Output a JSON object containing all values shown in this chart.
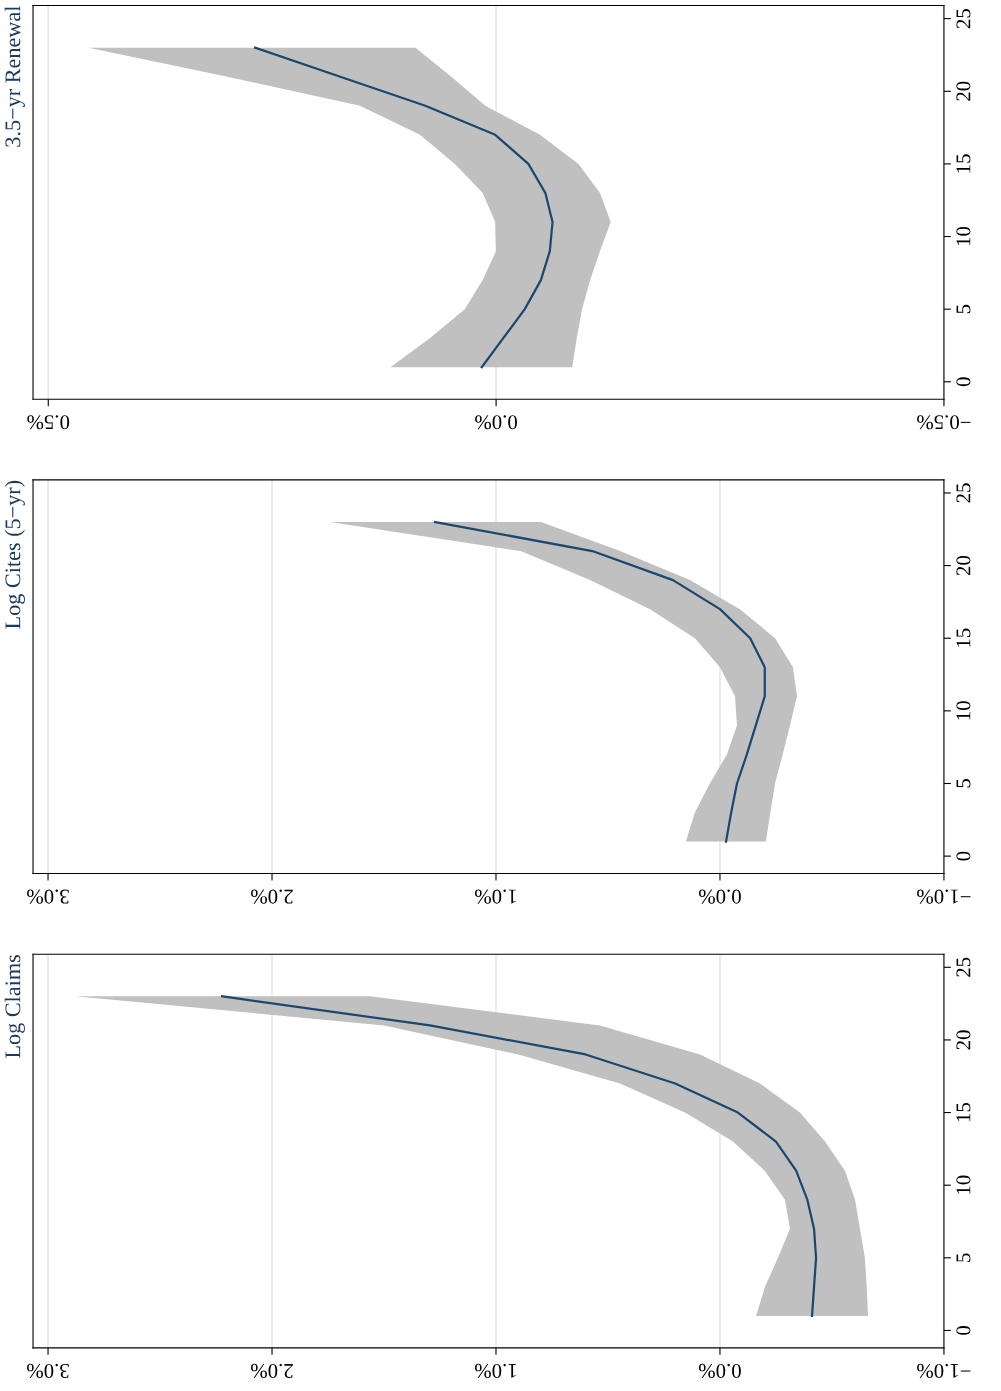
{
  "chart_data": [
    {
      "type": "line",
      "orientation": "horizontal",
      "title": "3.5−yr Renewal",
      "grid": "x",
      "x": [
        1,
        3,
        5,
        7,
        9,
        11,
        13,
        15,
        17,
        19,
        21,
        23
      ],
      "series": [
        {
          "color": "#1a476f",
          "values": [
            0.016,
            -0.008,
            -0.032,
            -0.05,
            -0.06,
            -0.063,
            -0.055,
            -0.036,
            0.001,
            0.079,
            0.174,
            0.269
          ],
          "lower": [
            -0.085,
            -0.09,
            -0.096,
            -0.105,
            -0.116,
            -0.128,
            -0.116,
            -0.092,
            -0.049,
            0.012,
            0.05,
            0.09
          ],
          "upper": [
            0.118,
            0.074,
            0.035,
            0.015,
            0.0,
            0.001,
            0.015,
            0.046,
            0.085,
            0.152,
            0.3,
            0.455
          ]
        }
      ],
      "xlim": [
        0.517,
        -0.5
      ],
      "xticks": [
        {
          "value": 0.5,
          "label": "0.5%"
        },
        {
          "value": 0,
          "label": "0.0%"
        },
        {
          "value": -0.5,
          "label": "−0.5%"
        }
      ],
      "ylim": [
        -1.2,
        25.9
      ],
      "yticks": [
        0,
        5,
        10,
        15,
        20,
        25
      ]
    },
    {
      "type": "line",
      "orientation": "horizontal",
      "title": "Log Cites (5−yr)",
      "grid": "x",
      "x": [
        1,
        3,
        5,
        7,
        9,
        11,
        13,
        15,
        17,
        19,
        21,
        23
      ],
      "series": [
        {
          "color": "#1a476f",
          "values": [
            -0.027,
            -0.05,
            -0.076,
            -0.12,
            -0.16,
            -0.2,
            -0.2,
            -0.135,
            0.0,
            0.21,
            0.57,
            1.272
          ],
          "lower": [
            -0.205,
            -0.225,
            -0.246,
            -0.28,
            -0.3125,
            -0.344,
            -0.326,
            -0.246,
            -0.089,
            0.134,
            0.446,
            0.799
          ],
          "upper": [
            0.152,
            0.112,
            0.045,
            -0.031,
            -0.076,
            -0.067,
            0.0,
            0.112,
            0.3125,
            0.58,
            0.89,
            1.741
          ]
        }
      ],
      "xlim": [
        3.067,
        -1.0
      ],
      "xticks": [
        {
          "value": 3,
          "label": "3.0%"
        },
        {
          "value": 2,
          "label": "2.0%"
        },
        {
          "value": 1,
          "label": "1.0%"
        },
        {
          "value": 0,
          "label": "0.0%"
        },
        {
          "value": -1,
          "label": "−1.0%"
        }
      ],
      "ylim": [
        -1.2,
        25.9
      ],
      "yticks": [
        0,
        5,
        10,
        15,
        20,
        25
      ]
    },
    {
      "type": "line",
      "orientation": "horizontal",
      "title": "Log Claims",
      "grid": "x",
      "x": [
        1,
        3,
        5,
        7,
        9,
        11,
        13,
        15,
        17,
        19,
        21,
        23
      ],
      "series": [
        {
          "color": "#1a476f",
          "values": [
            -0.411,
            -0.42,
            -0.429,
            -0.42,
            -0.39,
            -0.34,
            -0.25,
            -0.08,
            0.2,
            0.6,
            1.295,
            2.223
          ],
          "lower": [
            -0.661,
            -0.655,
            -0.647,
            -0.625,
            -0.603,
            -0.558,
            -0.469,
            -0.357,
            -0.179,
            0.089,
            0.536,
            1.5625
          ],
          "upper": [
            -0.161,
            -0.201,
            -0.259,
            -0.3125,
            -0.29,
            -0.2,
            -0.058,
            0.156,
            0.446,
            0.9,
            1.5,
            2.879
          ]
        }
      ],
      "xlim": [
        3.067,
        -1.0
      ],
      "xticks": [
        {
          "value": 3,
          "label": "3.0%"
        },
        {
          "value": 2,
          "label": "2.0%"
        },
        {
          "value": 1,
          "label": "1.0%"
        },
        {
          "value": 0,
          "label": "0.0%"
        },
        {
          "value": -1,
          "label": "−1.0%"
        }
      ],
      "ylim": [
        -1.2,
        25.9
      ],
      "yticks": [
        0,
        5,
        10,
        15,
        20,
        25
      ]
    }
  ]
}
